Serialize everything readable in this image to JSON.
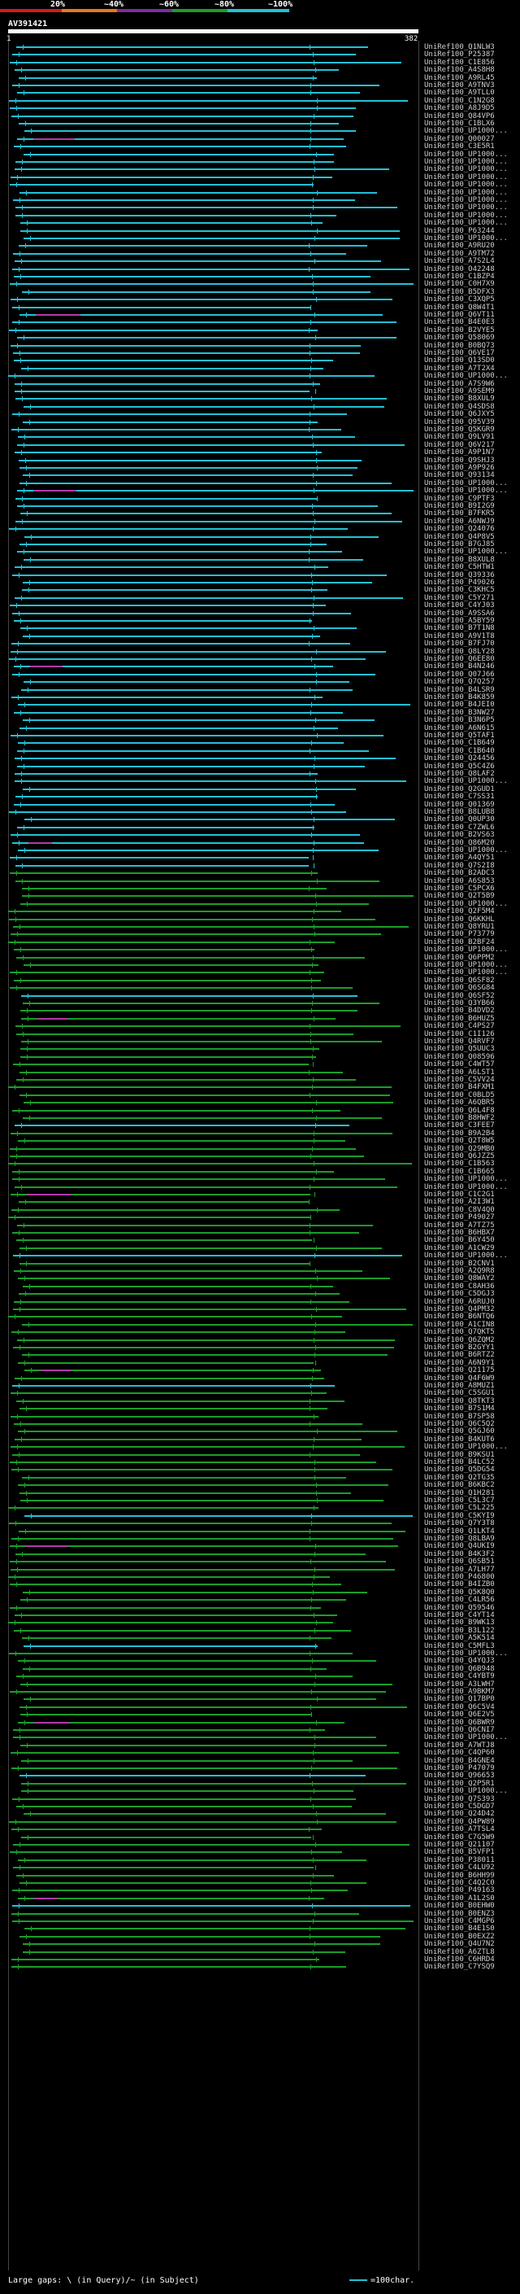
{
  "scale": {
    "labels": [
      "20%",
      "~40%",
      "~60%",
      "~80%",
      "~100%"
    ],
    "colors": [
      "#d7191c",
      "#e6781e",
      "#7b2f9e",
      "#1a9e2a",
      "#22c1d6"
    ]
  },
  "query": {
    "title": "AV391421",
    "start": "1",
    "end": "382"
  },
  "hits": [
    "UniRef100_Q1NLW3",
    "UniRef100_P25387",
    "UniRef100_C1E856",
    "UniRef100_A4S8H8",
    "UniRef100_A9RL45",
    "UniRef100_A9TNV3",
    "UniRef100_A9TLL0",
    "UniRef100_C1N2G8",
    "UniRef100_A8J9D5",
    "UniRef100_Q84VP6",
    "UniRef100_C1BLX6",
    "UniRef100_UP1000...",
    "UniRef100_Q00027",
    "UniRef100_C3E5R1",
    "UniRef100_UP1000...",
    "UniRef100_UP1000...",
    "UniRef100_UP1000...",
    "UniRef100_UP1000...",
    "UniRef100_UP1000...",
    "UniRef100_UP1000...",
    "UniRef100_UP1000...",
    "UniRef100_UP1000...",
    "UniRef100_UP1000...",
    "UniRef100_UP1000...",
    "UniRef100_P63244",
    "UniRef100_UP1000...",
    "UniRef100_A9RU20",
    "UniRef100_A9TM72",
    "UniRef100_A7S2L4",
    "UniRef100_O42248",
    "UniRef100_C1BZP4",
    "UniRef100_C0H7X9",
    "UniRef100_B5DFX3",
    "UniRef100_C3XQP5",
    "UniRef100_Q8W4T1",
    "UniRef100_Q6VT11",
    "UniRef100_B4E0E3",
    "UniRef100_B2VYE5",
    "UniRef100_Q58069",
    "UniRef100_B0BQ73",
    "UniRef100_Q6VE17",
    "UniRef100_Q13SD0",
    "UniRef100_A7T2X4",
    "UniRef100_UP1000...",
    "UniRef100_A7S9W6",
    "UniRef100_A9SEM9",
    "UniRef100_B8XUL9",
    "UniRef100_Q4SDS8",
    "UniRef100_Q6JXY5",
    "UniRef100_Q95V39",
    "UniRef100_Q5KGR9",
    "UniRef100_Q9LV91",
    "UniRef100_Q6V217",
    "UniRef100_A9P1N7",
    "UniRef100_Q9SHJ3",
    "UniRef100_A9P926",
    "UniRef100_Q93134",
    "UniRef100_UP1000...",
    "UniRef100_UP1000...",
    "UniRef100_C9PTF3",
    "UniRef100_B9I2G9",
    "UniRef100_B7FKR5",
    "UniRef100_A6NWJ9",
    "UniRef100_Q24076",
    "UniRef100_Q4P8V5",
    "UniRef100_B7GJ85",
    "UniRef100_UP1000...",
    "UniRef100_B8XUL8",
    "UniRef100_C5HTW1",
    "UniRef100_Q39336",
    "UniRef100_P49026",
    "UniRef100_C3KHC5",
    "UniRef100_C5Y271",
    "UniRef100_C4YJ03",
    "UniRef100_A9SSA6",
    "UniRef100_A5BY59",
    "UniRef100_B7T1N8",
    "UniRef100_A9V1T8",
    "UniRef100_B7FJ70",
    "UniRef100_Q8LY28",
    "UniRef100_Q6EE80",
    "UniRef100_B4N246",
    "UniRef100_Q07J66",
    "UniRef100_Q7Q257",
    "UniRef100_B4LSR9",
    "UniRef100_B4K859",
    "UniRef100_B4JEI0",
    "UniRef100_B3NW27",
    "UniRef100_B3N6P5",
    "UniRef100_A6N615",
    "UniRef100_Q5TAF1",
    "UniRef100_C1B649",
    "UniRef100_C1B640",
    "UniRef100_Q24456",
    "UniRef100_Q5C4Z6",
    "UniRef100_Q8LAF2",
    "UniRef100_UP1000...",
    "UniRef100_Q2GUD1",
    "UniRef100_C7SS31",
    "UniRef100_Q01369",
    "UniRef100_B8LUB8",
    "UniRef100_Q0UP30",
    "UniRef100_C7ZWL6",
    "UniRef100_B2VS63",
    "UniRef100_Q86M20",
    "UniRef100_UP1000...",
    "UniRef100_A4QY51",
    "UniRef100_Q7S2I8",
    "UniRef100_B2ADC3",
    "UniRef100_A6S853",
    "UniRef100_C5PCX6",
    "UniRef100_Q2T5B9",
    "UniRef100_UP1000...",
    "UniRef100_Q2F5M4",
    "UniRef100_Q6KKHL",
    "UniRef100_Q8YRU1",
    "UniRef100_P73779",
    "UniRef100_B2BF24",
    "UniRef100_UP1000...",
    "UniRef100_Q6PPM2",
    "UniRef100_UP1000...",
    "UniRef100_UP1000...",
    "UniRef100_Q6SF82",
    "UniRef100_Q6SG84",
    "UniRef100_Q6SF52",
    "UniRef100_Q3YB66",
    "UniRef100_B4DVD2",
    "UniRef100_B6HUZ5",
    "UniRef100_C4PS27",
    "UniRef100_C1I126",
    "UniRef100_Q4RVF7",
    "UniRef100_Q5UUC3",
    "UniRef100_Q08596",
    "UniRef100_C4WT57",
    "UniRef100_A6LST1",
    "UniRef100_C5VV24",
    "UniRef100_B4FXM1",
    "UniRef100_C0BLD5",
    "UniRef100_A6QBR5",
    "UniRef100_Q6L4F8",
    "UniRef100_B8HWF2",
    "UniRef100_C3FEE7",
    "UniRef100_B9A2B4",
    "UniRef100_Q2T8W5",
    "UniRef100_Q29MB0",
    "UniRef100_Q6JZZ5",
    "UniRef100_C1B563",
    "UniRef100_C1B665",
    "UniRef100_UP1000...",
    "UniRef100_UP1000...",
    "UniRef100_C1C2G1",
    "UniRef100_A2I3W1",
    "UniRef100_C8V4Q0",
    "UniRef100_P49027",
    "UniRef100_A7TZ75",
    "UniRef100_B6HBX7",
    "UniRef100_B6Y450",
    "UniRef100_A1CW29",
    "UniRef100_UP1000...",
    "UniRef100_B2CNV1",
    "UniRef100_A2Q9R8",
    "UniRef100_Q8WAY2",
    "UniRef100_C8AH36",
    "UniRef100_C5DGJ3",
    "UniRef100_A6RUJ0",
    "UniRef100_Q4PM32",
    "UniRef100_B6NTQ6",
    "UniRef100_A1CIN8",
    "UniRef100_Q7QKT5",
    "UniRef100_Q6ZQM2",
    "UniRef100_B2GYY1",
    "UniRef100_B6RTZ2",
    "UniRef100_A6N9Y1",
    "UniRef100_Q21175",
    "UniRef100_Q4F6W9",
    "UniRef100_A8MUZ1",
    "UniRef100_C5SGU1",
    "UniRef100_Q8TKT3",
    "UniRef100_B7S1M4",
    "UniRef100_B7SP58",
    "UniRef100_Q6C5Q2",
    "UniRef100_Q5GJ60",
    "UniRef100_B4KUT6",
    "UniRef100_UP1000...",
    "UniRef100_B9KSU1",
    "UniRef100_B4LC52",
    "UniRef100_Q5DG54",
    "UniRef100_Q2TG35",
    "UniRef100_B6KBC2",
    "UniRef100_Q1H281",
    "UniRef100_C5L3C7",
    "UniRef100_C5L225",
    "UniRef100_C5KYI9",
    "UniRef100_Q7Y3T8",
    "UniRef100_Q1LKT4",
    "UniRef100_Q8LBA9",
    "UniRef100_Q4UKI9",
    "UniRef100_B4K3F2",
    "UniRef100_Q6SB51",
    "UniRef100_A7LH77",
    "UniRef100_P46800",
    "UniRef100_B4IZB0",
    "UniRef100_Q5K8Q0",
    "UniRef100_C4LR56",
    "UniRef100_Q59546",
    "UniRef100_C4YT14",
    "UniRef100_B9WK13",
    "UniRef100_B3L122",
    "UniRef100_A5K514",
    "UniRef100_C5MFL3",
    "UniRef100_UP1000...",
    "UniRef100_Q4YQJ3",
    "UniRef100_Q6B948",
    "UniRef100_C4YBT9",
    "UniRef100_A3LWH7",
    "UniRef100_A9BKM7",
    "UniRef100_Q17BP0",
    "UniRef100_Q6C5V4",
    "UniRef100_Q6E2V5",
    "UniRef100_Q6BWR9",
    "UniRef100_Q6CNI7",
    "UniRef100_UP1000...",
    "UniRef100_A7WTJ8",
    "UniRef100_C4QP60",
    "UniRef100_B4GNE4",
    "UniRef100_P47079",
    "UniRef100_Q96653",
    "UniRef100_Q2P5R1",
    "UniRef100_UP1000...",
    "UniRef100_Q7S393",
    "UniRef100_C5DGD7",
    "UniRef100_Q24D42",
    "UniRef100_Q4PW89",
    "UniRef100_A7TSL4",
    "UniRef100_C7G5W9",
    "UniRef100_Q21107",
    "UniRef100_B5VFP1",
    "UniRef100_P38011",
    "UniRef100_C4LU92",
    "UniRef100_B6HH99",
    "UniRef100_C4Q2C0",
    "UniRef100_P49163",
    "UniRef100_A1L2S0",
    "UniRef100_B0EHW0",
    "UniRef100_B0ENZ3",
    "UniRef100_C4MGP6",
    "UniRef100_B4E1S0",
    "UniRef100_B0EXZ2",
    "UniRef100_Q4U7N2",
    "UniRef100_A6ZTL8",
    "UniRef100_C6HRD4",
    "UniRef100_C7YSQ9"
  ],
  "footer": {
    "text": "Large gaps: \\ (in Query)/~ (in Subject)",
    "legend": "=100char."
  }
}
